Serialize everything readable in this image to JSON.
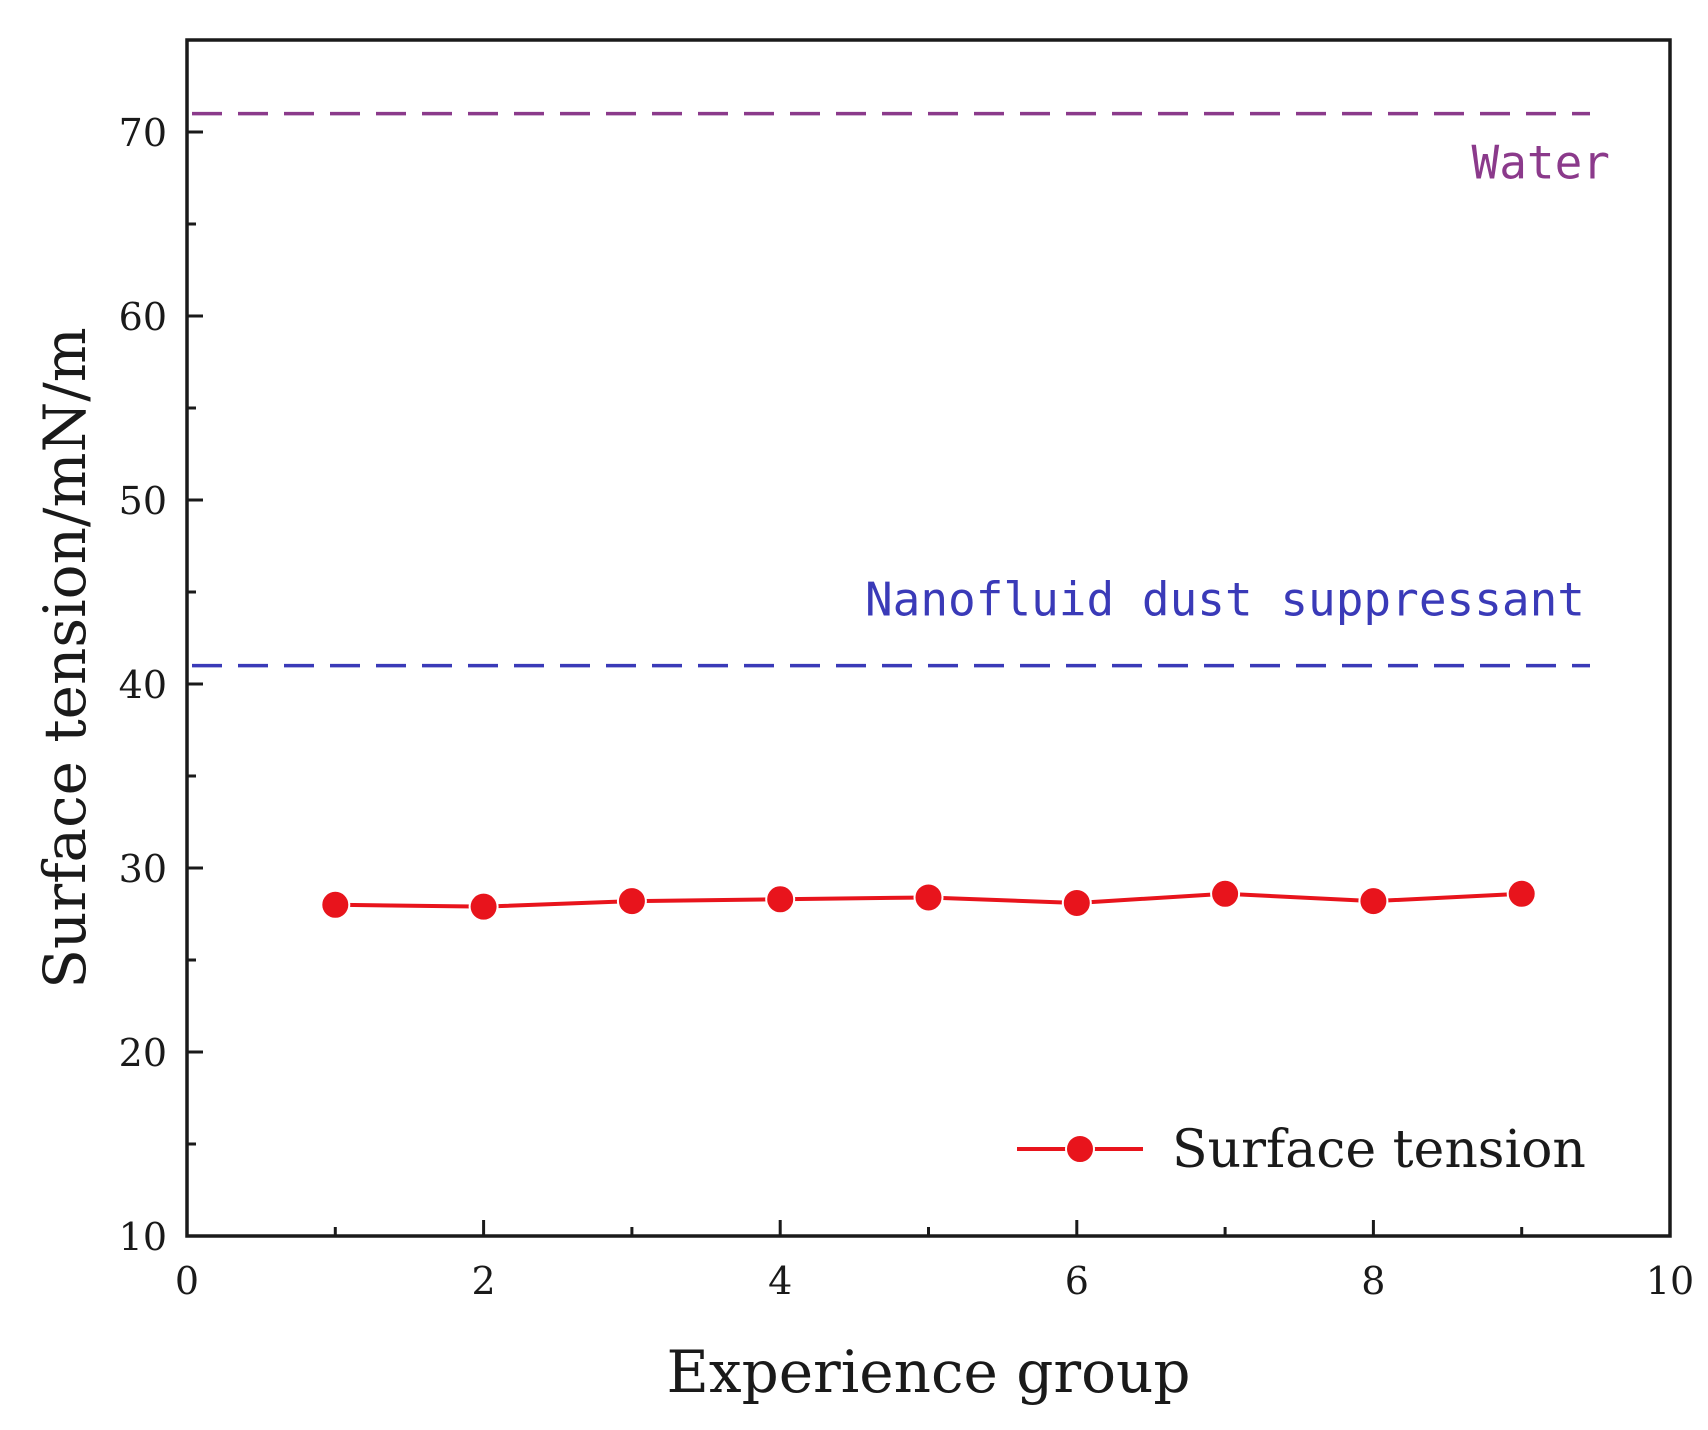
{
  "chart_data": {
    "type": "line",
    "xlabel": "Experience group",
    "ylabel": "Surface tension/mN/m",
    "xlim": [
      0,
      10
    ],
    "ylim": [
      10,
      75
    ],
    "x_ticks": [
      0,
      2,
      4,
      6,
      8,
      10
    ],
    "y_ticks": [
      10,
      20,
      30,
      40,
      50,
      60,
      70
    ],
    "series": [
      {
        "name": "Surface tension",
        "color": "#e8141c",
        "x": [
          1,
          2,
          3,
          4,
          5,
          6,
          7,
          8,
          9
        ],
        "values": [
          28.0,
          27.9,
          28.2,
          28.3,
          28.4,
          28.1,
          28.6,
          28.2,
          28.6
        ]
      }
    ],
    "reference_lines": [
      {
        "label": "Water",
        "y": 71,
        "color": "#8b3a8b"
      },
      {
        "label": "Nanofluid dust suppressant",
        "y": 41,
        "color": "#3a3ab8"
      }
    ],
    "legend": {
      "position": "bottom-right",
      "entries": [
        "Surface tension"
      ]
    },
    "grid": false
  }
}
